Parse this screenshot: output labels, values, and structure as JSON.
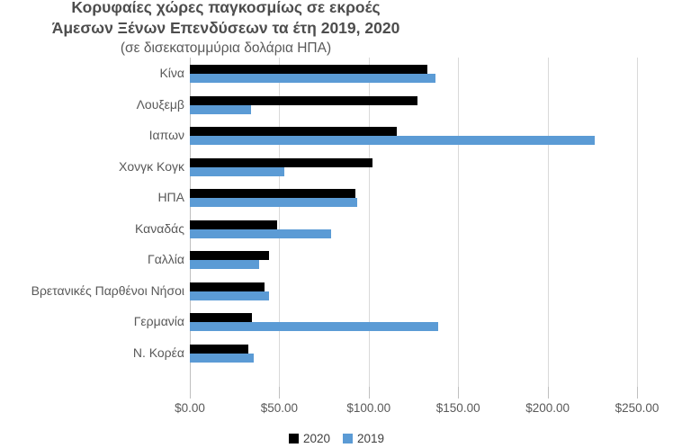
{
  "title": {
    "line1": "Κορυφαίες χώρες παγκοσμίως σε εκροές",
    "line2": "Άμεσων Ξένων Επενδύσεων τα έτη 2019, 2020",
    "line3": "(σε δισεκατομμύρια δολάρια ΗΠΑ)"
  },
  "chart_data": {
    "type": "bar",
    "orientation": "horizontal",
    "title": "Κορυφαίες χώρες παγκοσμίως σε εκροές Άμεσων Ξένων Επενδύσεων τα έτη 2019, 2020 (σε δισεκατομμύρια δολάρια ΗΠΑ)",
    "categories": [
      "Κίνα",
      "Λουξεμβ",
      "Ιαπων",
      "Χονγκ Κογκ",
      "ΗΠΑ",
      "Καναδάς",
      "Γαλλία",
      "Βρετανικές Παρθένοι Νήσοι",
      "Γερμανία",
      "Ν. Κορέα"
    ],
    "series": [
      {
        "name": "2020",
        "color": "#000000",
        "values": [
          132.9,
          127.1,
          115.7,
          102.0,
          92.8,
          48.7,
          44.2,
          42.0,
          34.9,
          32.5
        ]
      },
      {
        "name": "2019",
        "color": "#5B9BD5",
        "values": [
          137.1,
          34.0,
          226.6,
          53.0,
          93.7,
          78.9,
          38.7,
          44.5,
          139.0,
          35.5
        ]
      }
    ],
    "x_ticks": [
      "$0.00",
      "$50.00",
      "$100.00",
      "$150.00",
      "$200.00",
      "$250.00"
    ],
    "xlim": [
      0,
      250
    ],
    "xlabel": "",
    "ylabel": "",
    "grid": true,
    "legend_position": "bottom"
  },
  "colors": {
    "bar_2020": "#000000",
    "bar_2019": "#5B9BD5",
    "text": "#595959",
    "gridline": "#D9D9D9",
    "axis": "#BFBFBF",
    "background": "#FFFFFF"
  }
}
